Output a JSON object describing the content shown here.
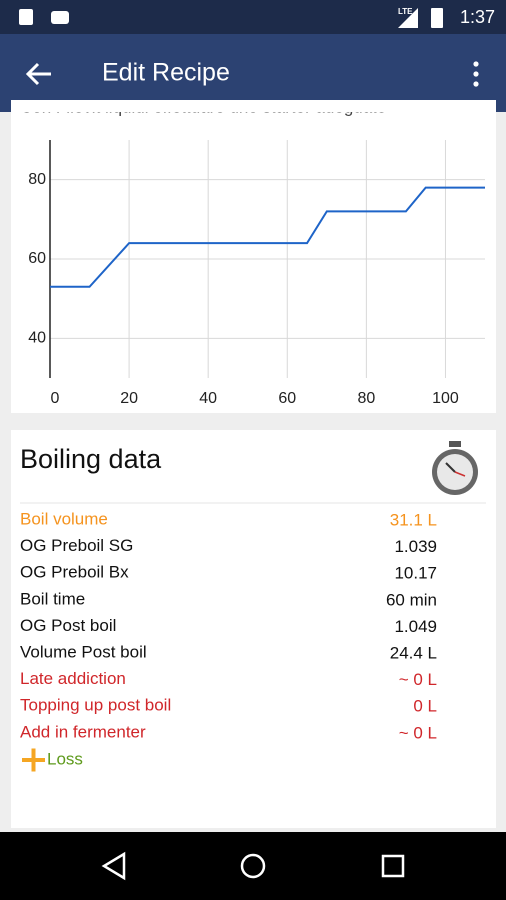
{
  "status_bar": {
    "network": "LTE",
    "time": "1:37"
  },
  "app_bar": {
    "title": "Edit Recipe"
  },
  "note": "Con Filevit liquidi effettuare uno starter adeguato",
  "chart_data": {
    "type": "line",
    "x": [
      0,
      10,
      20,
      65,
      70,
      90,
      95,
      110
    ],
    "values": [
      53,
      53,
      64,
      64,
      72,
      72,
      78,
      78
    ],
    "color": "#1e64c8",
    "xlim": [
      0,
      110
    ],
    "ylim": [
      30,
      90
    ],
    "xticks": [
      0,
      20,
      40,
      60,
      80,
      100
    ],
    "yticks": [
      40,
      60,
      80
    ],
    "grid": true
  },
  "boiling": {
    "title": "Boiling data",
    "rows": [
      {
        "label": "Boil volume",
        "value": "31.1 L",
        "color": "#f5931e"
      },
      {
        "label": "OG Preboil SG",
        "value": "1.039",
        "color": "#111111"
      },
      {
        "label": "OG Preboil Bx",
        "value": "10.17",
        "color": "#111111"
      },
      {
        "label": "Boil time",
        "value": "60 min",
        "color": "#111111"
      },
      {
        "label": "OG Post boil",
        "value": "1.049",
        "color": "#111111"
      },
      {
        "label": "Volume Post boil",
        "value": "24.4 L",
        "color": "#111111"
      },
      {
        "label": "Late addiction",
        "value": "~ 0 L",
        "color": "#d0262a"
      },
      {
        "label": "Topping up post boil",
        "value": "0 L",
        "color": "#d0262a"
      },
      {
        "label": "Add in fermenter",
        "value": "~ 0 L",
        "color": "#d0262a"
      }
    ],
    "add_button": "Loss"
  }
}
